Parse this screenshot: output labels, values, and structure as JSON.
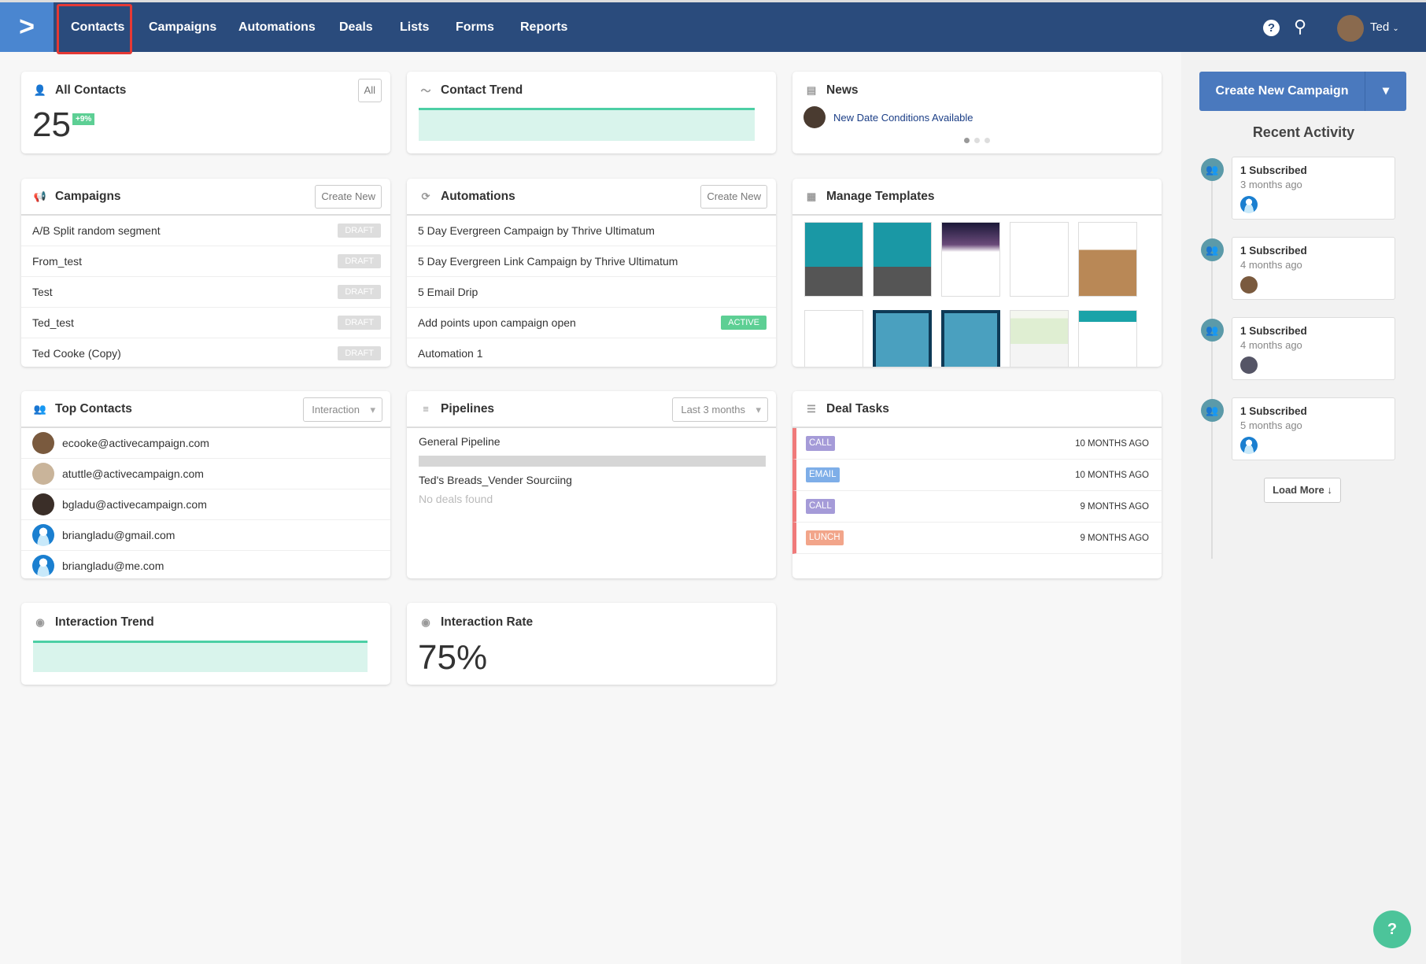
{
  "nav": {
    "items": [
      "Contacts",
      "Campaigns",
      "Automations",
      "Deals",
      "Lists",
      "Forms",
      "Reports"
    ],
    "active": "Contacts",
    "user": "Ted"
  },
  "all_contacts": {
    "title": "All Contacts",
    "filter": "All",
    "count": "25",
    "change": "+9%"
  },
  "contact_trend": {
    "title": "Contact Trend"
  },
  "news": {
    "title": "News",
    "headline": "New Date Conditions Available"
  },
  "campaigns": {
    "title": "Campaigns",
    "create": "Create New",
    "items": [
      {
        "name": "A/B Split random segment",
        "status": "DRAFT"
      },
      {
        "name": "From_test",
        "status": "DRAFT"
      },
      {
        "name": "Test",
        "status": "DRAFT"
      },
      {
        "name": "Ted_test",
        "status": "DRAFT"
      },
      {
        "name": "Ted Cooke (Copy)",
        "status": "DRAFT"
      }
    ]
  },
  "automations": {
    "title": "Automations",
    "create": "Create New",
    "items": [
      {
        "name": "5 Day Evergreen Campaign by Thrive Ultimatum",
        "status": ""
      },
      {
        "name": "5 Day Evergreen Link Campaign by Thrive Ultimatum",
        "status": ""
      },
      {
        "name": "5 Email Drip",
        "status": ""
      },
      {
        "name": "Add points upon campaign open",
        "status": "ACTIVE"
      },
      {
        "name": "Automation 1",
        "status": ""
      }
    ]
  },
  "templates": {
    "title": "Manage Templates"
  },
  "top_contacts": {
    "title": "Top Contacts",
    "filter": "Interaction",
    "items": [
      "ecooke@activecampaign.com",
      "atuttle@activecampaign.com",
      "bgladu@activecampaign.com",
      "briangladu@gmail.com",
      "briangladu@me.com"
    ]
  },
  "pipelines": {
    "title": "Pipelines",
    "filter": "Last 3 months",
    "items": [
      "General Pipeline",
      "Ted's Breads_Vender Sourciing"
    ],
    "empty": "No deals found"
  },
  "deal_tasks": {
    "title": "Deal Tasks",
    "items": [
      {
        "type": "CALL",
        "ago": "10 MONTHS AGO",
        "color": "#a59bd8"
      },
      {
        "type": "EMAIL",
        "ago": "10 MONTHS AGO",
        "color": "#7eaee8"
      },
      {
        "type": "CALL",
        "ago": "9 MONTHS AGO",
        "color": "#a59bd8"
      },
      {
        "type": "LUNCH",
        "ago": "9 MONTHS AGO",
        "color": "#f2a58a"
      }
    ]
  },
  "interaction_trend": {
    "title": "Interaction Trend"
  },
  "interaction_rate": {
    "title": "Interaction Rate",
    "value": "75%"
  },
  "sidebar": {
    "create": "Create New Campaign",
    "recent_title": "Recent Activity",
    "activities": [
      {
        "title": "1 Subscribed",
        "ago": "3 months ago"
      },
      {
        "title": "1 Subscribed",
        "ago": "4 months ago"
      },
      {
        "title": "1 Subscribed",
        "ago": "4 months ago"
      },
      {
        "title": "1 Subscribed",
        "ago": "5 months ago"
      }
    ],
    "load_more": "Load More"
  },
  "colors": {
    "nav": "#2a4b7c",
    "accent": "#4a79be",
    "active": "#5dcf94",
    "trend": "#4ccfa5"
  }
}
